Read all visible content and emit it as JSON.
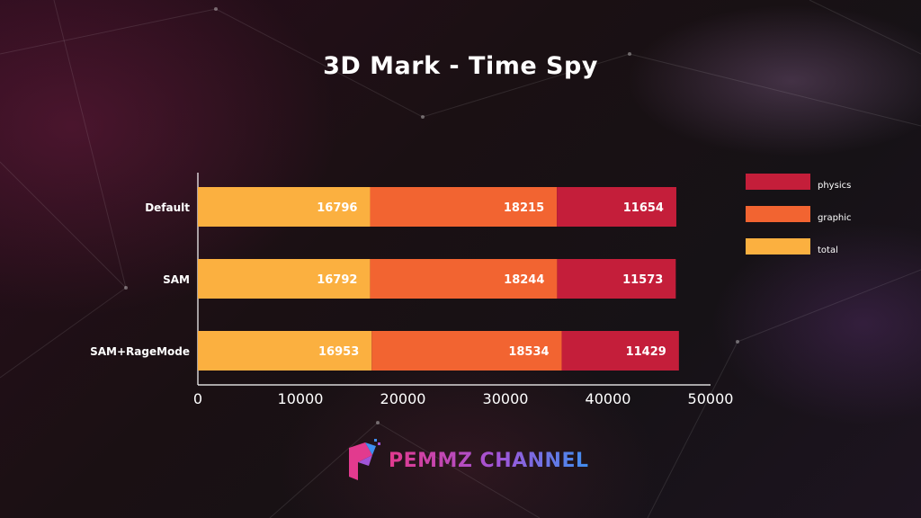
{
  "chart_data": {
    "type": "bar",
    "orientation": "horizontal",
    "stacked": true,
    "title": "3D Mark - Time Spy",
    "categories": [
      "Default",
      "SAM",
      "SAM+RageMode"
    ],
    "series": [
      {
        "name": "total",
        "color": "#fbb040",
        "values": [
          16796,
          16792,
          16953
        ]
      },
      {
        "name": "graphic",
        "color": "#f26431",
        "values": [
          18215,
          18244,
          18534
        ]
      },
      {
        "name": "physics",
        "color": "#c41e3a",
        "values": [
          11654,
          11573,
          11429
        ]
      }
    ],
    "xlim": [
      0,
      50000
    ],
    "xticks": [
      0,
      10000,
      20000,
      30000,
      40000,
      50000
    ],
    "xlabel": "",
    "ylabel": "",
    "grid": false,
    "legend_position": "top-right",
    "legend_order": [
      "physics",
      "graphic",
      "total"
    ]
  },
  "brand": {
    "name": "PEMMZ CHANNEL",
    "logo_icon": "pemmz-logo-icon"
  }
}
